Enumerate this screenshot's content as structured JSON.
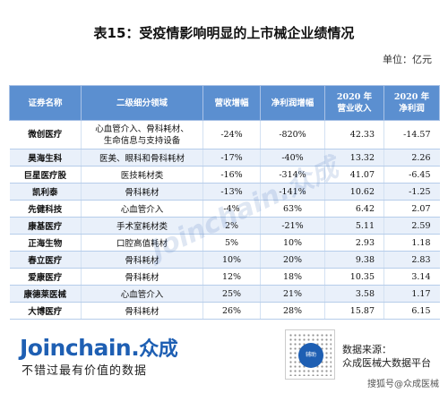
{
  "title": "表15：受疫情影响明显的上市械企业绩情况",
  "unit": "单位：亿元",
  "table": {
    "headers": [
      "证券名称",
      "二级细分领域",
      "营收增幅",
      "净利润增幅",
      "2020 年\n营业收入",
      "2020 年\n净利润"
    ],
    "rows": [
      [
        "微创医疗",
        "心血管介入、骨科耗材、\n生命信息与支持设备",
        "-24%",
        "-820%",
        "42.33",
        "-14.57"
      ],
      [
        "昊海生科",
        "医美、眼科和骨科耗材",
        "-17%",
        "-40%",
        "13.32",
        "2.26"
      ],
      [
        "巨星医疗股",
        "医技耗材类",
        "-16%",
        "-314%",
        "41.07",
        "-6.45"
      ],
      [
        "凯利泰",
        "骨科耗材",
        "-13%",
        "-141%",
        "10.62",
        "-1.25"
      ],
      [
        "先健科技",
        "心血管介入",
        "-4%",
        "63%",
        "6.42",
        "2.07"
      ],
      [
        "康基医疗",
        "手术室耗材类",
        "2%",
        "-21%",
        "5.11",
        "2.59"
      ],
      [
        "正海生物",
        "口腔高值耗材",
        "5%",
        "10%",
        "2.93",
        "1.18"
      ],
      [
        "春立医疗",
        "骨科耗材",
        "10%",
        "20%",
        "9.38",
        "2.83"
      ],
      [
        "爱康医疗",
        "骨科耗材",
        "12%",
        "18%",
        "10.35",
        "3.14"
      ],
      [
        "康德莱医械",
        "心血管介入",
        "25%",
        "21%",
        "3.58",
        "1.17"
      ],
      [
        "大博医疗",
        "骨科耗材",
        "26%",
        "28%",
        "15.87",
        "6.15"
      ]
    ]
  },
  "watermark": "Joinchain.众成",
  "footer": {
    "logo_en": "Joinchain.",
    "logo_cn": "众成",
    "slogan": "不错过最有价值的数据",
    "qr_center": "辅助",
    "source_line1": "数据来源：",
    "source_line2": "众成医械大数据平台",
    "credit": "搜狐号@众成医械"
  },
  "colors": {
    "header_bg": "#5b8fd0",
    "row_alt": "#e9f0fa",
    "brand": "#1e5fb3"
  }
}
